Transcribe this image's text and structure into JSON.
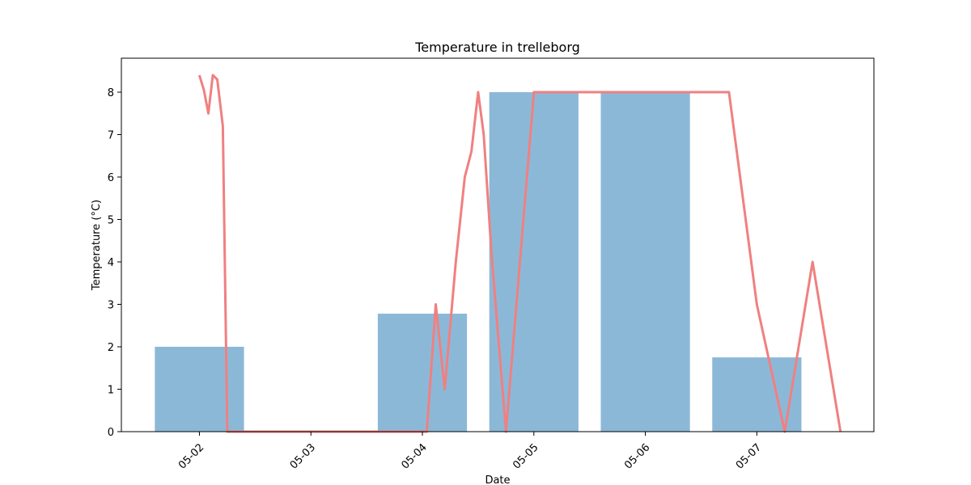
{
  "chart_data": {
    "type": "bar",
    "title": "Temperature in trelleborg",
    "xlabel": "Date",
    "ylabel": "Temperature (°C)",
    "x_ticks": [
      "05-02",
      "05-03",
      "05-04",
      "05-05",
      "05-06",
      "05-07"
    ],
    "y_ticks": [
      "0",
      "1",
      "2",
      "3",
      "4",
      "5",
      "6",
      "7",
      "8"
    ],
    "xlim": [
      -0.7,
      6.05
    ],
    "ylim": [
      0,
      8.8
    ],
    "grid": false,
    "colors": {
      "bar": "#8cb8d8",
      "line": "#f08080"
    },
    "bars": {
      "positions": [
        0,
        1,
        2,
        3,
        4,
        5
      ],
      "values": [
        2.0,
        0,
        2.78,
        8.0,
        8.0,
        1.75
      ]
    },
    "line": {
      "x": [
        0.0,
        0.04,
        0.08,
        0.12,
        0.16,
        0.21,
        0.25,
        0.3,
        0.5,
        1.0,
        1.5,
        2.0,
        2.04,
        2.12,
        2.2,
        2.3,
        2.38,
        2.44,
        2.5,
        2.55,
        2.62,
        2.75,
        3.0,
        3.25,
        3.5,
        3.75,
        4.0,
        4.25,
        4.5,
        4.75,
        5.0,
        5.25,
        5.5,
        5.75
      ],
      "y": [
        8.4,
        8.05,
        7.5,
        8.4,
        8.3,
        7.2,
        0,
        0,
        0,
        0,
        0,
        0,
        0,
        3.0,
        1.0,
        4.0,
        6.0,
        6.6,
        8.0,
        7.0,
        4.2,
        0,
        8.0,
        8.0,
        8.0,
        8.0,
        8.0,
        8.0,
        8.0,
        8.0,
        3.0,
        0,
        4.0,
        0
      ]
    }
  }
}
